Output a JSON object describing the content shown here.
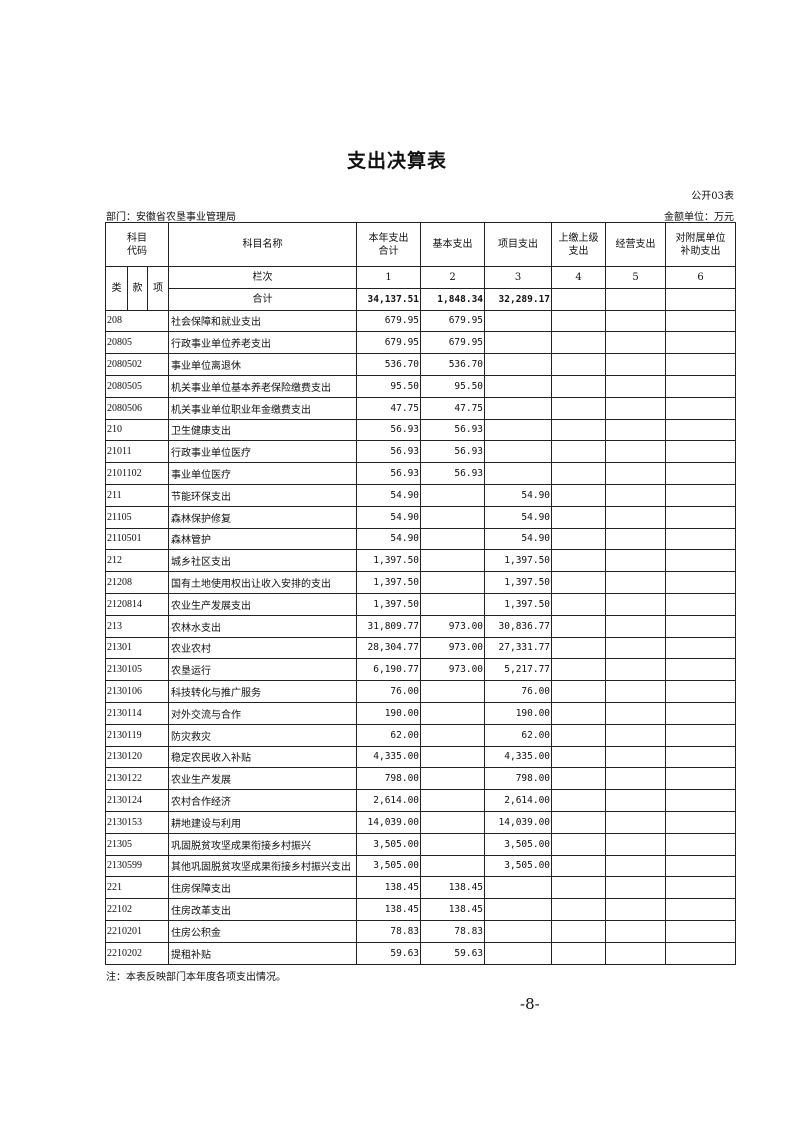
{
  "title": "支出决算表",
  "form_no": "公开03表",
  "department": "部门：安徽省农垦事业管理局",
  "unit": "金额单位：万元",
  "headers": {
    "code_l1": "科目",
    "code_l2": "代码",
    "name": "科目名称",
    "total_l1": "本年支出",
    "total_l2": "合计",
    "basic": "基本支出",
    "project": "项目支出",
    "upper_l1": "上缴上级",
    "upper_l2": "支出",
    "business": "经营支出",
    "sub_l1": "对附属单位",
    "sub_l2": "补助支出",
    "lei": "类",
    "kuan": "款",
    "xiang": "项",
    "lanci": "栏次",
    "col_nums": [
      "1",
      "2",
      "3",
      "4",
      "5",
      "6"
    ]
  },
  "total_row": {
    "label": "合计",
    "total": "34,137.51",
    "basic": "1,848.34",
    "project": "32,289.17"
  },
  "rows": [
    {
      "code": "208",
      "name": "社会保障和就业支出",
      "total": "679.95",
      "basic": "679.95",
      "project": ""
    },
    {
      "code": "20805",
      "name": "行政事业单位养老支出",
      "total": "679.95",
      "basic": "679.95",
      "project": ""
    },
    {
      "code": "2080502",
      "name": "事业单位离退休",
      "total": "536.70",
      "basic": "536.70",
      "project": ""
    },
    {
      "code": "2080505",
      "name": "机关事业单位基本养老保险缴费支出",
      "total": "95.50",
      "basic": "95.50",
      "project": ""
    },
    {
      "code": "2080506",
      "name": "机关事业单位职业年金缴费支出",
      "total": "47.75",
      "basic": "47.75",
      "project": ""
    },
    {
      "code": "210",
      "name": "卫生健康支出",
      "total": "56.93",
      "basic": "56.93",
      "project": ""
    },
    {
      "code": "21011",
      "name": "行政事业单位医疗",
      "total": "56.93",
      "basic": "56.93",
      "project": ""
    },
    {
      "code": "2101102",
      "name": "事业单位医疗",
      "total": "56.93",
      "basic": "56.93",
      "project": ""
    },
    {
      "code": "211",
      "name": "节能环保支出",
      "total": "54.90",
      "basic": "",
      "project": "54.90"
    },
    {
      "code": "21105",
      "name": "森林保护修复",
      "total": "54.90",
      "basic": "",
      "project": "54.90"
    },
    {
      "code": "2110501",
      "name": "森林管护",
      "total": "54.90",
      "basic": "",
      "project": "54.90"
    },
    {
      "code": "212",
      "name": "城乡社区支出",
      "total": "1,397.50",
      "basic": "",
      "project": "1,397.50"
    },
    {
      "code": "21208",
      "name": "国有土地使用权出让收入安排的支出",
      "total": "1,397.50",
      "basic": "",
      "project": "1,397.50"
    },
    {
      "code": "2120814",
      "name": "农业生产发展支出",
      "total": "1,397.50",
      "basic": "",
      "project": "1,397.50"
    },
    {
      "code": "213",
      "name": "农林水支出",
      "total": "31,809.77",
      "basic": "973.00",
      "project": "30,836.77"
    },
    {
      "code": "21301",
      "name": "农业农村",
      "total": "28,304.77",
      "basic": "973.00",
      "project": "27,331.77"
    },
    {
      "code": "2130105",
      "name": "农垦运行",
      "total": "6,190.77",
      "basic": "973.00",
      "project": "5,217.77"
    },
    {
      "code": "2130106",
      "name": "科技转化与推广服务",
      "total": "76.00",
      "basic": "",
      "project": "76.00"
    },
    {
      "code": "2130114",
      "name": "对外交流与合作",
      "total": "190.00",
      "basic": "",
      "project": "190.00"
    },
    {
      "code": "2130119",
      "name": "防灾救灾",
      "total": "62.00",
      "basic": "",
      "project": "62.00"
    },
    {
      "code": "2130120",
      "name": "稳定农民收入补贴",
      "total": "4,335.00",
      "basic": "",
      "project": "4,335.00"
    },
    {
      "code": "2130122",
      "name": "农业生产发展",
      "total": "798.00",
      "basic": "",
      "project": "798.00"
    },
    {
      "code": "2130124",
      "name": "农村合作经济",
      "total": "2,614.00",
      "basic": "",
      "project": "2,614.00"
    },
    {
      "code": "2130153",
      "name": "耕地建设与利用",
      "total": "14,039.00",
      "basic": "",
      "project": "14,039.00"
    },
    {
      "code": "21305",
      "name": "巩固脱贫攻坚成果衔接乡村振兴",
      "total": "3,505.00",
      "basic": "",
      "project": "3,505.00"
    },
    {
      "code": "2130599",
      "name": "其他巩固脱贫攻坚成果衔接乡村振兴支出",
      "total": "3,505.00",
      "basic": "",
      "project": "3,505.00"
    },
    {
      "code": "221",
      "name": "住房保障支出",
      "total": "138.45",
      "basic": "138.45",
      "project": ""
    },
    {
      "code": "22102",
      "name": "住房改革支出",
      "total": "138.45",
      "basic": "138.45",
      "project": ""
    },
    {
      "code": "2210201",
      "name": "住房公积金",
      "total": "78.83",
      "basic": "78.83",
      "project": ""
    },
    {
      "code": "2210202",
      "name": "提租补贴",
      "total": "59.63",
      "basic": "59.63",
      "project": ""
    }
  ],
  "note": "注：本表反映部门本年度各项支出情况。",
  "page_number": "-8-"
}
